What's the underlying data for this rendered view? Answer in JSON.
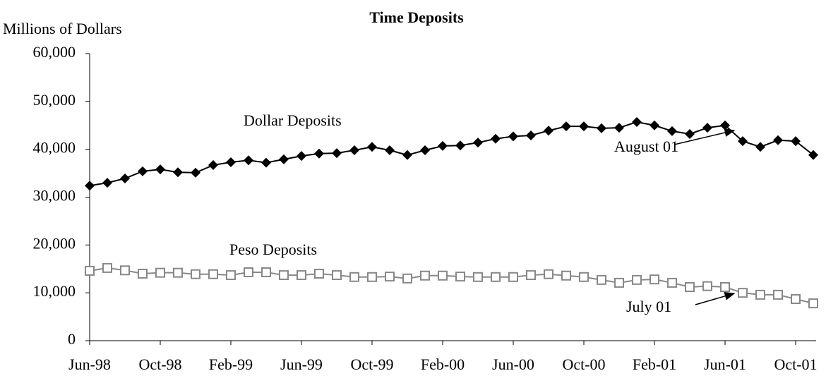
{
  "chart_data": {
    "type": "line",
    "title": "Time Deposits",
    "y_axis_label": "Millions of Dollars",
    "categories": [
      "Jun-98",
      null,
      null,
      null,
      "Oct-98",
      null,
      null,
      null,
      "Feb-99",
      null,
      null,
      null,
      "Jun-99",
      null,
      null,
      null,
      "Oct-99",
      null,
      null,
      null,
      "Feb-00",
      null,
      null,
      null,
      "Jun-00",
      null,
      null,
      null,
      "Oct-00",
      null,
      null,
      null,
      "Feb-01",
      null,
      null,
      null,
      "Jun-01",
      null,
      null,
      null,
      "Oct-01",
      null
    ],
    "series": [
      {
        "name": "Dollar Deposits",
        "color": "#000000",
        "marker": "diamond",
        "values": [
          32400,
          33000,
          33900,
          35400,
          35800,
          35200,
          35100,
          36700,
          37300,
          37700,
          37200,
          37900,
          38600,
          39100,
          39200,
          39800,
          40500,
          39800,
          38800,
          39800,
          40700,
          40800,
          41400,
          42200,
          42700,
          42900,
          43900,
          44800,
          44800,
          44400,
          44500,
          45700,
          45000,
          43800,
          43200,
          44500,
          45000,
          41700,
          40500,
          41900,
          41700,
          38800
        ]
      },
      {
        "name": "Peso Deposits",
        "color": "#888888",
        "marker": "square",
        "values": [
          14600,
          15200,
          14700,
          14000,
          14200,
          14200,
          13900,
          13900,
          13700,
          14300,
          14300,
          13700,
          13700,
          14000,
          13700,
          13300,
          13300,
          13400,
          13000,
          13600,
          13600,
          13400,
          13300,
          13300,
          13300,
          13700,
          13900,
          13600,
          13300,
          12700,
          12100,
          12700,
          12800,
          12100,
          11200,
          11400,
          11200,
          10000,
          9600,
          9600,
          8700,
          7800
        ]
      }
    ],
    "annotations": [
      "August 01",
      "July 01"
    ],
    "ylim": [
      0,
      60000
    ],
    "yticks": [
      0,
      {
        "value": 10000,
        "label": "10,000"
      },
      {
        "value": 20000,
        "label": "20,000"
      },
      {
        "value": 30000,
        "label": "30,000"
      },
      {
        "value": 40000,
        "label": "40,000"
      },
      {
        "value": 50000,
        "label": "50,000"
      },
      {
        "value": 60000,
        "label": "60,000"
      }
    ],
    "grid": false
  }
}
